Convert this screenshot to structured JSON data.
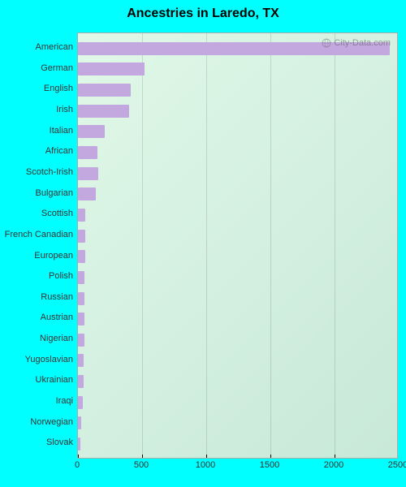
{
  "chart": {
    "type": "bar",
    "title": "Ancestries in Laredo, TX",
    "title_fontsize": 16,
    "page_bg": "#00ffff",
    "plot_bg_gradient_start": "#e0f8e8",
    "plot_bg_gradient_end": "#c8e8d8",
    "bar_color": "#c3a8e0",
    "watermark_text": "City-Data.com",
    "categories": [
      "American",
      "German",
      "English",
      "Irish",
      "Italian",
      "African",
      "Scotch-Irish",
      "Bulgarian",
      "Scottish",
      "French Canadian",
      "European",
      "Polish",
      "Russian",
      "Austrian",
      "Nigerian",
      "Yugoslavian",
      "Ukrainian",
      "Iraqi",
      "Norwegian",
      "Slovak"
    ],
    "values": [
      2430,
      520,
      410,
      400,
      210,
      150,
      160,
      140,
      60,
      55,
      55,
      50,
      50,
      50,
      50,
      45,
      45,
      40,
      25,
      20
    ],
    "xlim": [
      0,
      2500
    ],
    "xtick_step": 500,
    "xticks": [
      0,
      500,
      1000,
      1500,
      2000,
      2500
    ],
    "label_fontsize": 11
  }
}
